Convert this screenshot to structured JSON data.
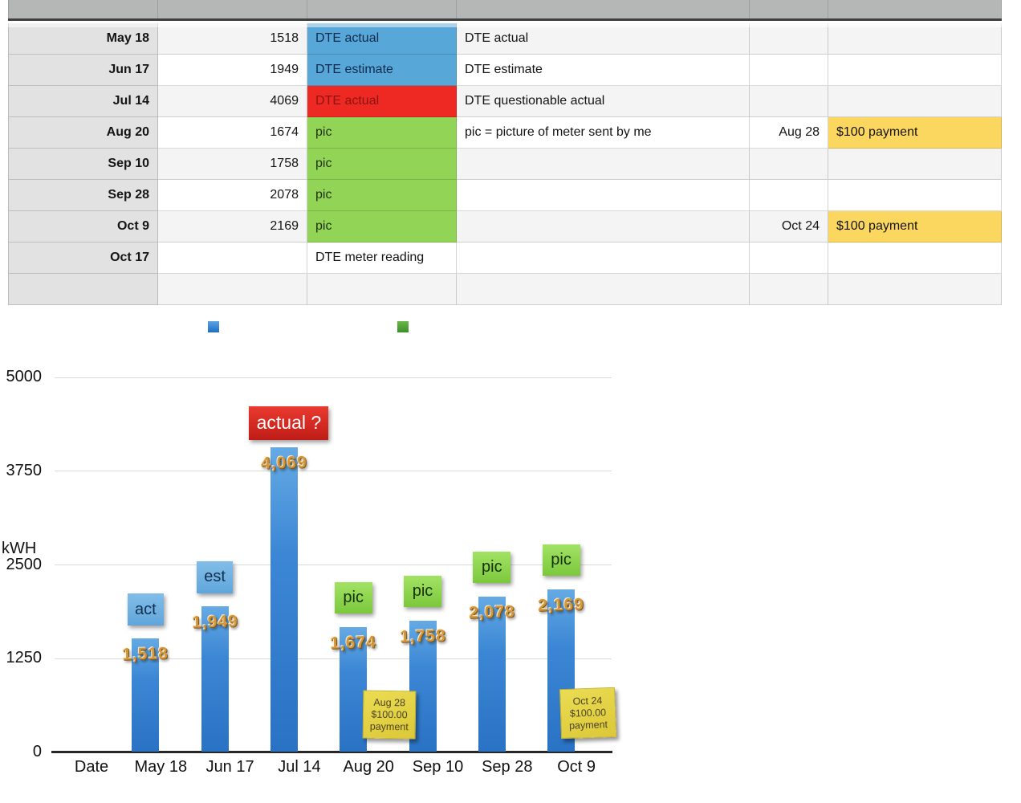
{
  "table": {
    "rows": [
      {
        "date": "May 18",
        "value": "1518",
        "label": "DTE actual",
        "label_color": "blue",
        "description": "DTE actual",
        "payment_date": "",
        "payment": ""
      },
      {
        "date": "Jun 17",
        "value": "1949",
        "label": "DTE estimate",
        "label_color": "blue",
        "description": "DTE estimate",
        "payment_date": "",
        "payment": ""
      },
      {
        "date": "Jul 14",
        "value": "4069",
        "label": "DTE actual",
        "label_color": "red",
        "description": "DTE questionable actual",
        "payment_date": "",
        "payment": ""
      },
      {
        "date": "Aug 20",
        "value": "1674",
        "label": "pic",
        "label_color": "green",
        "description": "pic = picture of meter sent by me",
        "payment_date": "Aug 28",
        "payment": "$100 payment"
      },
      {
        "date": "Sep 10",
        "value": "1758",
        "label": "pic",
        "label_color": "green",
        "description": "",
        "payment_date": "",
        "payment": ""
      },
      {
        "date": "Sep 28",
        "value": "2078",
        "label": "pic",
        "label_color": "green",
        "description": "",
        "payment_date": "",
        "payment": ""
      },
      {
        "date": "Oct 9",
        "value": "2169",
        "label": "pic",
        "label_color": "green",
        "description": "",
        "payment_date": "Oct 24",
        "payment": "$100 payment"
      },
      {
        "date": "Oct 17",
        "value": "",
        "label": "DTE meter reading",
        "label_color": "none",
        "description": "",
        "payment_date": "",
        "payment": ""
      },
      {
        "date": "",
        "value": "",
        "label": "",
        "label_color": "none",
        "description": "",
        "payment_date": "",
        "payment": ""
      }
    ]
  },
  "colors": {
    "cell_blue": "#58a7d9",
    "cell_red": "#ee2823",
    "cell_green": "#92d556",
    "cell_yellow": "#fcd75f",
    "bar_blue": "#3a85d4",
    "legend_blue": "#2f80cc",
    "legend_green": "#4d9b2f"
  },
  "chart_data": {
    "type": "bar",
    "title": "",
    "xlabel": "",
    "ylabel": "kWH",
    "ylim": [
      0,
      5000
    ],
    "yticks": [
      0,
      1250,
      2500,
      3750,
      5000
    ],
    "grid": true,
    "legend_position": "top",
    "categories": [
      "Date",
      "May 18",
      "Jun 17",
      "Jul 14",
      "Aug 20",
      "Sep 10",
      "Sep 28",
      "Oct 9"
    ],
    "values": [
      null,
      1518,
      1949,
      4069,
      1674,
      1758,
      2078,
      2169
    ],
    "value_labels": [
      "",
      "1,518",
      "1,949",
      "4,069",
      "1,674",
      "1,758",
      "2,078",
      "2,169"
    ],
    "bar_annotations": [
      null,
      {
        "text": "act",
        "style": "blue"
      },
      {
        "text": "est",
        "style": "blue"
      },
      {
        "text": "actual ?",
        "style": "red"
      },
      {
        "text": "pic",
        "style": "green"
      },
      {
        "text": "pic",
        "style": "green"
      },
      {
        "text": "pic",
        "style": "green"
      },
      {
        "text": "pic",
        "style": "green"
      }
    ],
    "sticky_notes": [
      {
        "lines": [
          "Aug 28",
          "$100.00",
          "payment"
        ]
      },
      {
        "lines": [
          "Oct 24",
          "$100.00",
          "payment"
        ]
      }
    ]
  }
}
